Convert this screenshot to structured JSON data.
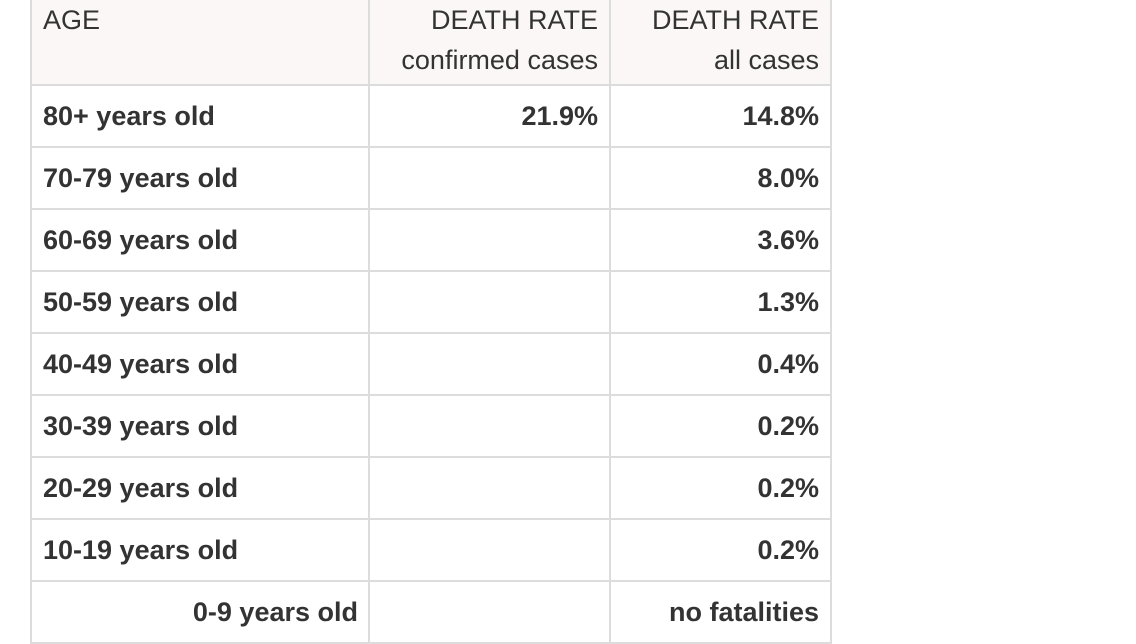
{
  "table": {
    "headers": {
      "age": "AGE",
      "confirmed_line1": "DEATH RATE",
      "confirmed_line2": "confirmed cases",
      "all_line1": "DEATH RATE",
      "all_line2": "all cases"
    },
    "rows": [
      {
        "age": "80+ years old",
        "confirmed": "21.9%",
        "all": "14.8%"
      },
      {
        "age": "70-79 years old",
        "confirmed": "",
        "all": "8.0%"
      },
      {
        "age": "60-69 years old",
        "confirmed": "",
        "all": "3.6%"
      },
      {
        "age": "50-59 years old",
        "confirmed": "",
        "all": "1.3%"
      },
      {
        "age": "40-49 years old",
        "confirmed": "",
        "all": "0.4%"
      },
      {
        "age": "30-39 years old",
        "confirmed": "",
        "all": "0.2%"
      },
      {
        "age": "20-29 years old",
        "confirmed": "",
        "all": "0.2%"
      },
      {
        "age": "10-19 years old",
        "confirmed": "",
        "all": "0.2%"
      },
      {
        "age": "0-9 years old",
        "confirmed": "",
        "all": "no fatalities"
      }
    ]
  }
}
